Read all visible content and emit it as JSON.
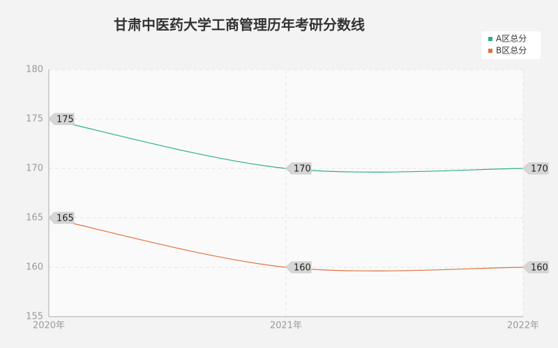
{
  "chart_data": {
    "type": "line",
    "title": "甘肃中医药大学工商管理历年考研分数线",
    "categories": [
      "2020年",
      "2021年",
      "2022年"
    ],
    "series": [
      {
        "name": "A区总分",
        "color": "#2bb07f",
        "values": [
          175,
          170,
          170
        ]
      },
      {
        "name": "B区总分",
        "color": "#e0703c",
        "values": [
          165,
          160,
          160
        ]
      }
    ],
    "ylim": [
      155,
      180
    ],
    "yticks": [
      155,
      160,
      165,
      170,
      175,
      180
    ],
    "grid": true,
    "legend": "top-right"
  }
}
